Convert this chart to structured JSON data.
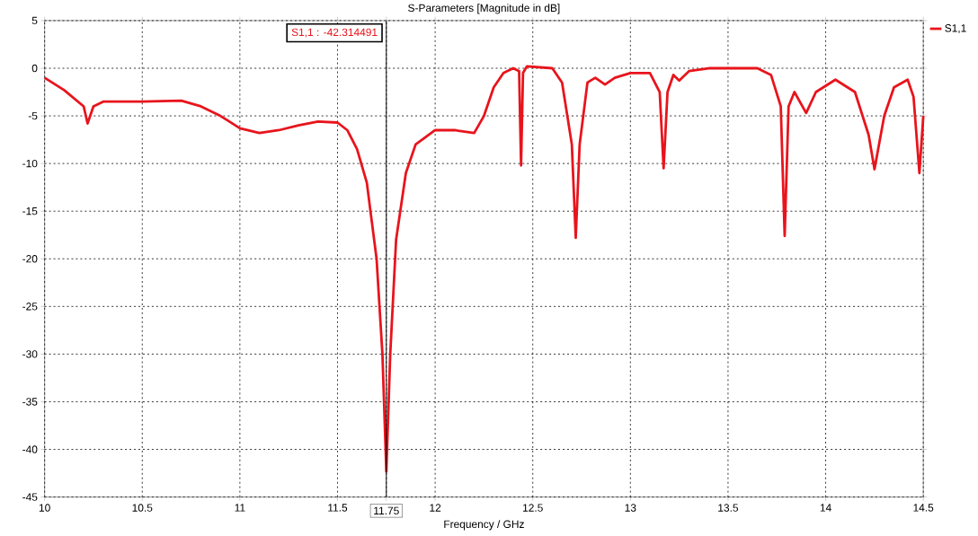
{
  "chart_data": {
    "type": "line",
    "title": "S-Parameters [Magnitude in dB]",
    "xlabel": "Frequency / GHz",
    "x": [
      10.0,
      10.1,
      10.2,
      10.22,
      10.25,
      10.3,
      10.5,
      10.7,
      10.8,
      10.9,
      11.0,
      11.1,
      11.2,
      11.3,
      11.4,
      11.5,
      11.55,
      11.6,
      11.65,
      11.7,
      11.73,
      11.75,
      11.77,
      11.8,
      11.85,
      11.9,
      12.0,
      12.1,
      12.2,
      12.25,
      12.3,
      12.35,
      12.4,
      12.43,
      12.44,
      12.45,
      12.47,
      12.6,
      12.65,
      12.7,
      12.72,
      12.74,
      12.78,
      12.82,
      12.87,
      12.92,
      13.0,
      13.1,
      13.15,
      13.17,
      13.19,
      13.22,
      13.25,
      13.3,
      13.4,
      13.5,
      13.65,
      13.72,
      13.77,
      13.79,
      13.81,
      13.84,
      13.9,
      13.95,
      14.05,
      14.15,
      14.22,
      14.25,
      14.3,
      14.35,
      14.42,
      14.45,
      14.48,
      14.5
    ],
    "series": [
      {
        "name": "S1,1",
        "color": "#e8141c",
        "values": [
          -1.0,
          -2.3,
          -4.0,
          -5.8,
          -4.0,
          -3.5,
          -3.5,
          -3.4,
          -4.0,
          -5.0,
          -6.3,
          -6.8,
          -6.5,
          -6.0,
          -5.6,
          -5.7,
          -6.5,
          -8.5,
          -12,
          -20,
          -30,
          -42.314491,
          -30,
          -18,
          -11,
          -8,
          -6.5,
          -6.5,
          -6.8,
          -5,
          -2,
          -0.5,
          0,
          -0.3,
          -10.2,
          -0.5,
          0.2,
          0,
          -1.5,
          -8,
          -17.8,
          -8,
          -1.5,
          -1,
          -1.7,
          -1.0,
          -0.5,
          -0.5,
          -2.5,
          -10.5,
          -2.5,
          -0.7,
          -1.3,
          -0.3,
          0,
          0,
          0,
          -0.7,
          -4,
          -17.6,
          -4,
          -2.5,
          -4.7,
          -2.5,
          -1.2,
          -2.5,
          -7,
          -10.6,
          -5,
          -2,
          -1.2,
          -3,
          -11,
          -5
        ]
      }
    ],
    "xlim": [
      10,
      14.5
    ],
    "ylim": [
      -45,
      5
    ],
    "xticks": [
      10,
      10.5,
      11,
      11.5,
      11.75,
      12,
      12.5,
      13,
      13.5,
      14,
      14.5
    ],
    "yticks": [
      -45,
      -40,
      -35,
      -30,
      -25,
      -20,
      -15,
      -10,
      -5,
      0,
      5
    ],
    "grid": true,
    "legend": "top right",
    "line_style": "solid",
    "marker": "none",
    "ref_lines": [
      {
        "axis": "x",
        "value": 11.75,
        "color": "#000000"
      }
    ],
    "annotations": [
      {
        "text": "S1,1 : -42.314491",
        "x": 11.75
      }
    ]
  }
}
